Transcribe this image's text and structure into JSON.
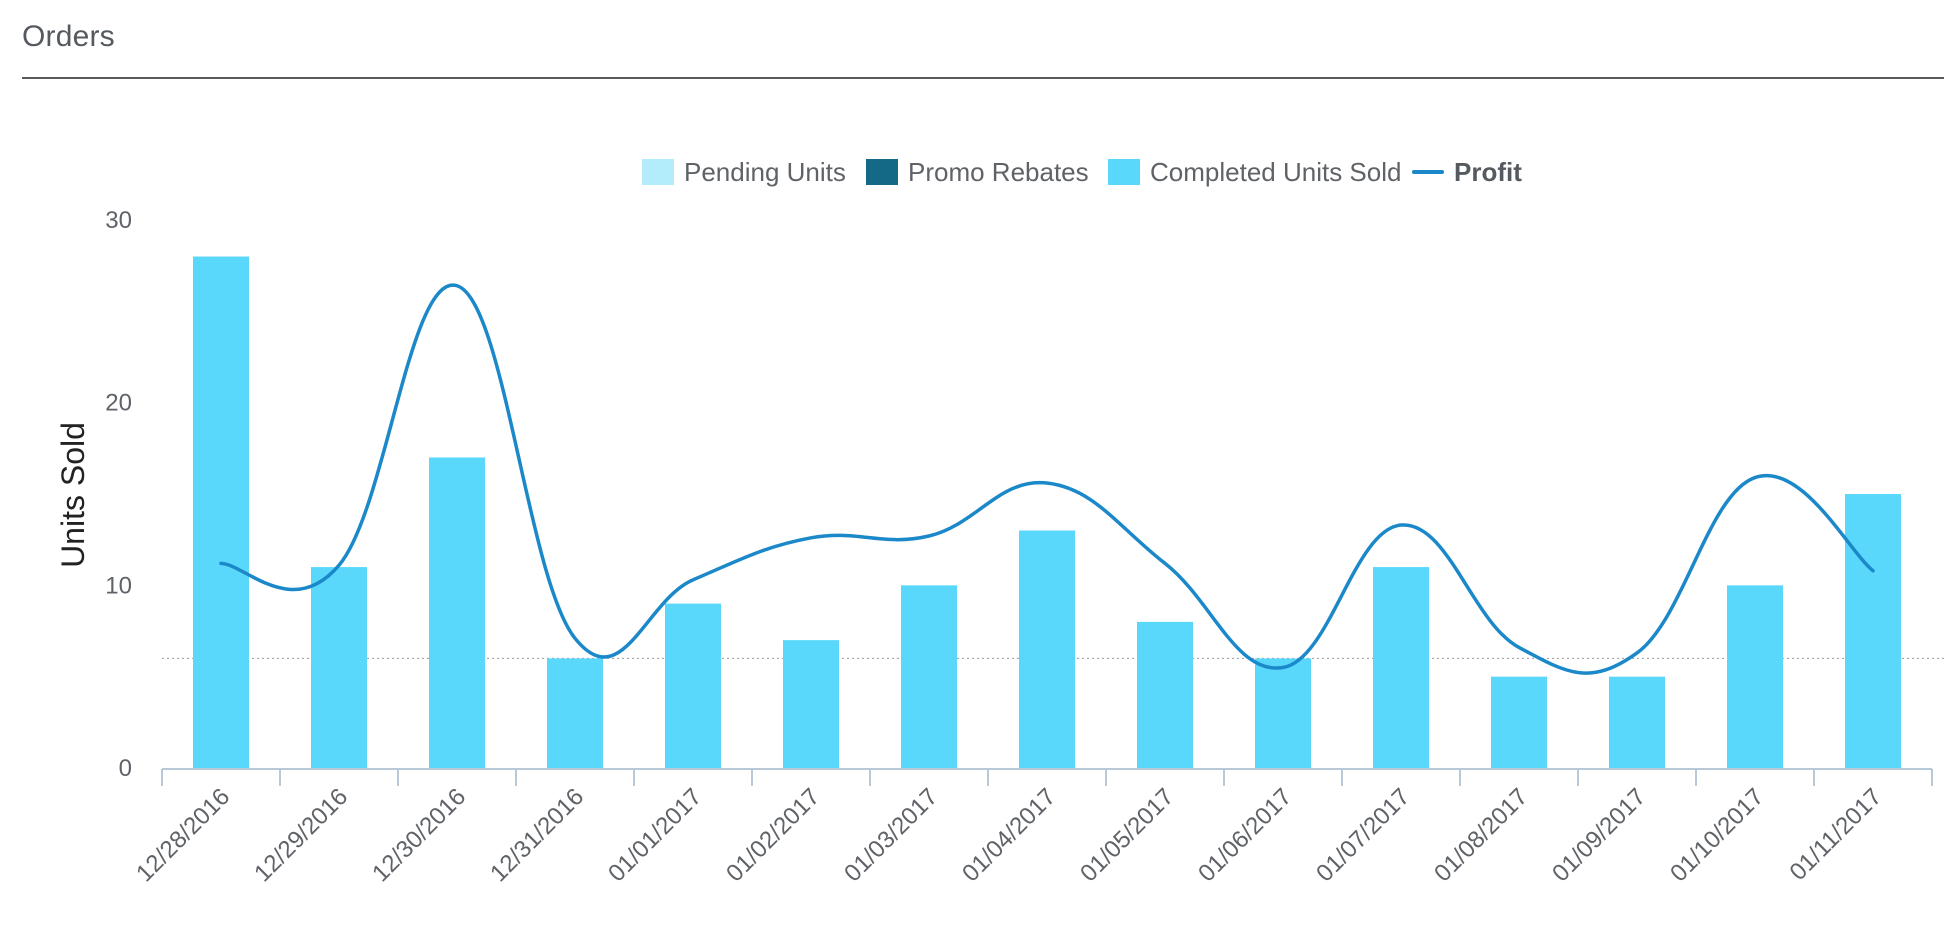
{
  "header": {
    "title": "Orders"
  },
  "legend": [
    {
      "label": "Pending Units",
      "color": "#b3ecfb",
      "kind": "box"
    },
    {
      "label": "Promo Rebates",
      "color": "#146a86",
      "kind": "box"
    },
    {
      "label": "Completed Units Sold",
      "color": "#5ad8fc",
      "kind": "box"
    },
    {
      "label": "Profit",
      "color": "#1a88c9",
      "kind": "line"
    }
  ],
  "chart_data": {
    "type": "bar",
    "categories": [
      "12/28/2016",
      "12/29/2016",
      "12/30/2016",
      "12/31/2016",
      "01/01/2017",
      "01/02/2017",
      "01/03/2017",
      "01/04/2017",
      "01/05/2017",
      "01/06/2017",
      "01/07/2017",
      "01/08/2017",
      "01/09/2017",
      "01/10/2017",
      "01/11/2017"
    ],
    "series": [
      {
        "name": "Pending Units",
        "type": "bar",
        "color": "#b3ecfb",
        "values": [
          0,
          0,
          0,
          0,
          0,
          0,
          0,
          0,
          0,
          0,
          0,
          0,
          0,
          0,
          0
        ]
      },
      {
        "name": "Promo Rebates",
        "type": "bar",
        "color": "#146a86",
        "values": [
          0,
          0,
          0,
          0,
          0,
          0,
          0,
          0,
          0,
          0,
          0,
          0,
          0,
          0,
          0
        ]
      },
      {
        "name": "Completed Units Sold",
        "type": "bar",
        "color": "#5ad8fc",
        "values": [
          28,
          11,
          17,
          6,
          9,
          7,
          10,
          13,
          8,
          6,
          11,
          5,
          5,
          10,
          15
        ]
      },
      {
        "name": "Profit",
        "type": "line",
        "color": "#1a88c9",
        "values": [
          11.2,
          11.1,
          26.4,
          7.1,
          10.3,
          12.6,
          12.7,
          15.6,
          11.2,
          5.5,
          13.3,
          6.6,
          6.3,
          15.9,
          10.8
        ]
      }
    ],
    "yticks": [
      "0",
      "10",
      "20",
      "30"
    ],
    "ylim": [
      0,
      30
    ],
    "ylabel": "Units Sold",
    "xlabel": "",
    "reference_line": 6,
    "grid": false,
    "legend_position": "top-center"
  }
}
